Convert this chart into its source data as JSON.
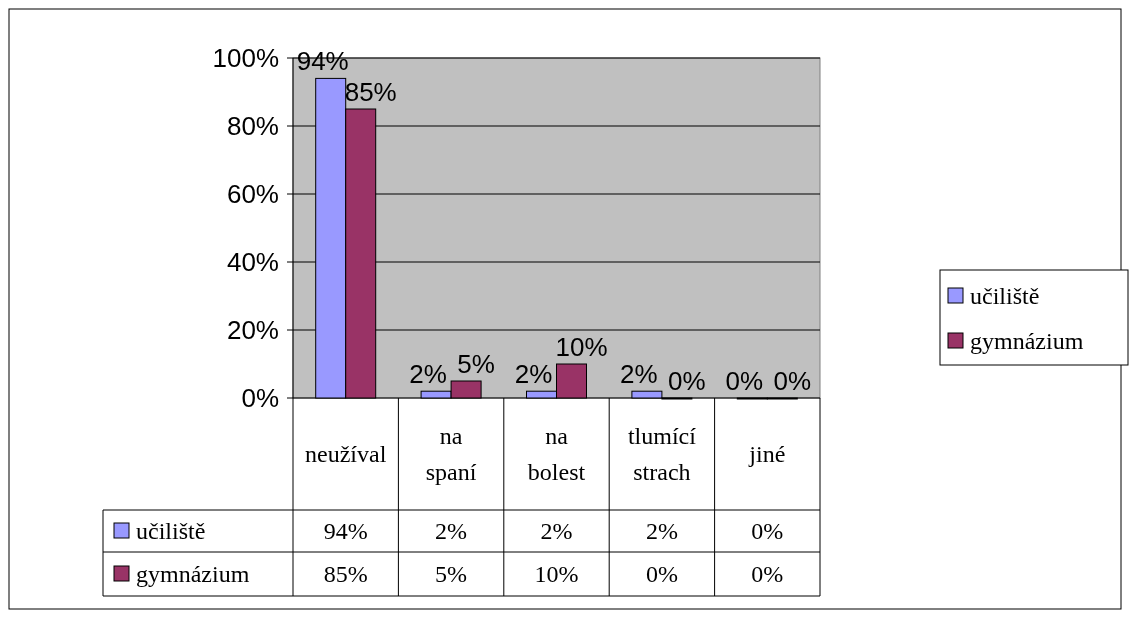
{
  "chart_data": {
    "type": "bar",
    "categories": [
      "neužíval",
      "na spaní",
      "na bolest",
      "tlumící strach",
      "jiné"
    ],
    "series": [
      {
        "name": "učiliště",
        "color": "#9999ff",
        "values": [
          94,
          2,
          2,
          2,
          0
        ]
      },
      {
        "name": "gymnázium",
        "color": "#993366",
        "values": [
          85,
          5,
          10,
          0,
          0
        ]
      }
    ],
    "value_labels": [
      [
        "94%",
        "2%",
        "2%",
        "2%",
        "0%"
      ],
      [
        "85%",
        "5%",
        "10%",
        "0%",
        "0%"
      ]
    ],
    "ylim": [
      0,
      100
    ],
    "yticks": [
      {
        "value": 0,
        "label": "0%"
      },
      {
        "value": 20,
        "label": "20%"
      },
      {
        "value": 40,
        "label": "40%"
      },
      {
        "value": 60,
        "label": "60%"
      },
      {
        "value": 80,
        "label": "80%"
      },
      {
        "value": 100,
        "label": "100%"
      }
    ],
    "grid": "y",
    "legend": "right"
  }
}
